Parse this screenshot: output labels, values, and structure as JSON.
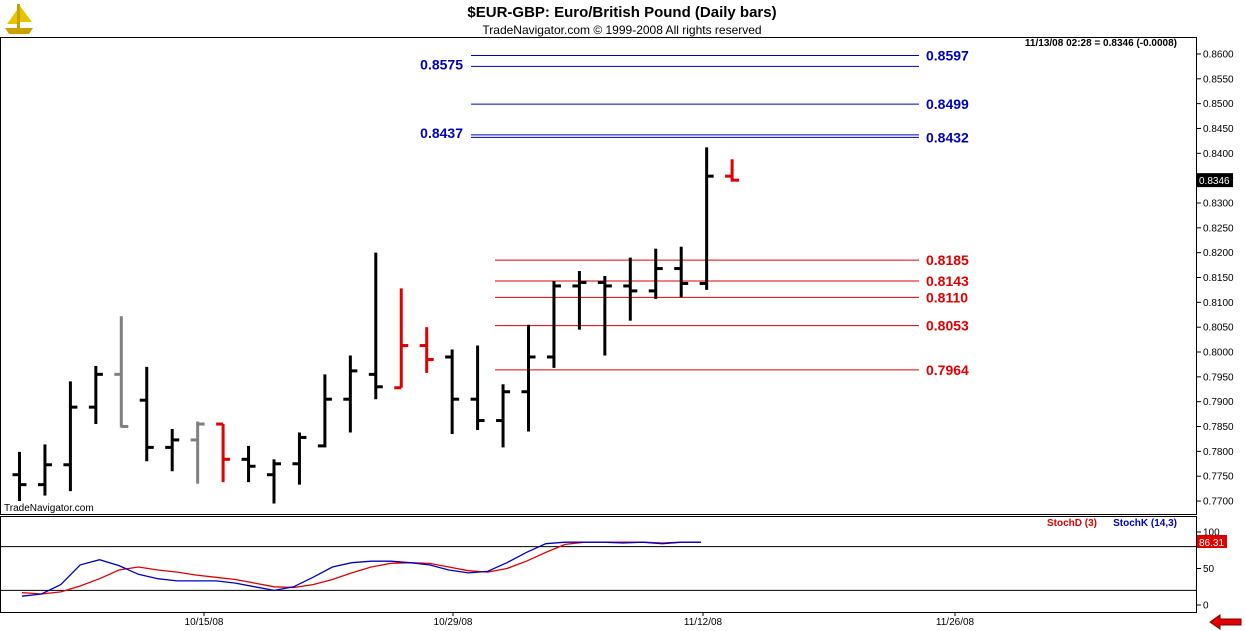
{
  "header": {
    "title": "$EUR-GBP:  Euro/British Pound  (Daily bars)",
    "subtitle": "TradeNavigator.com © 1999-2008 All rights reserved",
    "quote": "11/13/08 02:28 = 0.8346 (-0.0008)",
    "watermark": "TradeNavigator.com"
  },
  "colors": {
    "up": "#000000",
    "gray": "#808080",
    "red": "#e00000",
    "blue": "#0000c0",
    "logo": "#c8a000",
    "grid": "#000000"
  },
  "icons": {
    "logo": "gold-ship-logo-icon",
    "nav": "red-left-arrow-icon"
  },
  "chart_data": [
    {
      "type": "ohlc",
      "ylim": [
        0.769,
        0.8612
      ],
      "yticks": [
        "0.7700",
        "0.7750",
        "0.7800",
        "0.7850",
        "0.7900",
        "0.7950",
        "0.8000",
        "0.8050",
        "0.8100",
        "0.8150",
        "0.8200",
        "0.8250",
        "0.8300",
        "0.8350",
        "0.8400",
        "0.8450",
        "0.8500",
        "0.8550",
        "0.8600"
      ],
      "last_label": "0.8346",
      "xticks": [
        "10/15/08",
        "10/29/08",
        "11/12/08",
        "11/26/08"
      ],
      "bars": [
        {
          "date": "10/06",
          "o": 0.7753,
          "h": 0.7799,
          "l": 0.77,
          "c": 0.7733,
          "col": "black"
        },
        {
          "date": "10/07",
          "o": 0.7733,
          "h": 0.7814,
          "l": 0.7711,
          "c": 0.7773,
          "col": "black"
        },
        {
          "date": "10/08",
          "o": 0.7773,
          "h": 0.7941,
          "l": 0.772,
          "c": 0.7889,
          "col": "black"
        },
        {
          "date": "10/09",
          "o": 0.7889,
          "h": 0.7972,
          "l": 0.7855,
          "c": 0.7955,
          "col": "black"
        },
        {
          "date": "10/10",
          "o": 0.7955,
          "h": 0.8072,
          "l": 0.7848,
          "c": 0.785,
          "col": "gray"
        },
        {
          "date": "10/13",
          "o": 0.7903,
          "h": 0.797,
          "l": 0.778,
          "c": 0.7808,
          "col": "black"
        },
        {
          "date": "10/14",
          "o": 0.7808,
          "h": 0.7845,
          "l": 0.776,
          "c": 0.7823,
          "col": "black"
        },
        {
          "date": "10/15",
          "o": 0.7823,
          "h": 0.786,
          "l": 0.7735,
          "c": 0.7855,
          "col": "gray"
        },
        {
          "date": "10/16",
          "o": 0.7855,
          "h": 0.7855,
          "l": 0.7738,
          "c": 0.7784,
          "col": "red"
        },
        {
          "date": "10/17",
          "o": 0.7784,
          "h": 0.7811,
          "l": 0.7738,
          "c": 0.777,
          "col": "black"
        },
        {
          "date": "10/20",
          "o": 0.7753,
          "h": 0.7784,
          "l": 0.7695,
          "c": 0.7775,
          "col": "black"
        },
        {
          "date": "10/21",
          "o": 0.7775,
          "h": 0.7838,
          "l": 0.7733,
          "c": 0.7828,
          "col": "black"
        },
        {
          "date": "10/22",
          "o": 0.7811,
          "h": 0.7955,
          "l": 0.7808,
          "c": 0.7905,
          "col": "black"
        },
        {
          "date": "10/23",
          "o": 0.7905,
          "h": 0.7993,
          "l": 0.7838,
          "c": 0.7962,
          "col": "black"
        },
        {
          "date": "10/24",
          "o": 0.7955,
          "h": 0.82,
          "l": 0.7905,
          "c": 0.793,
          "col": "black"
        },
        {
          "date": "10/27",
          "o": 0.7928,
          "h": 0.8128,
          "l": 0.7928,
          "c": 0.8013,
          "col": "red"
        },
        {
          "date": "10/28",
          "o": 0.8013,
          "h": 0.805,
          "l": 0.7958,
          "c": 0.7985,
          "col": "red"
        },
        {
          "date": "10/29",
          "o": 0.799,
          "h": 0.8005,
          "l": 0.7835,
          "c": 0.7905,
          "col": "black"
        },
        {
          "date": "10/30",
          "o": 0.7905,
          "h": 0.8013,
          "l": 0.7843,
          "c": 0.7862,
          "col": "black"
        },
        {
          "date": "10/31",
          "o": 0.7862,
          "h": 0.7935,
          "l": 0.7808,
          "c": 0.792,
          "col": "black"
        },
        {
          "date": "11/03",
          "o": 0.792,
          "h": 0.8055,
          "l": 0.784,
          "c": 0.799,
          "col": "black"
        },
        {
          "date": "11/04",
          "o": 0.799,
          "h": 0.8143,
          "l": 0.7968,
          "c": 0.8133,
          "col": "black"
        },
        {
          "date": "11/05",
          "o": 0.8133,
          "h": 0.8163,
          "l": 0.8045,
          "c": 0.814,
          "col": "black"
        },
        {
          "date": "11/06",
          "o": 0.814,
          "h": 0.8153,
          "l": 0.7993,
          "c": 0.8133,
          "col": "black"
        },
        {
          "date": "11/07",
          "o": 0.8133,
          "h": 0.819,
          "l": 0.8063,
          "c": 0.8123,
          "col": "black"
        },
        {
          "date": "11/10",
          "o": 0.8123,
          "h": 0.8208,
          "l": 0.8107,
          "c": 0.8168,
          "col": "black"
        },
        {
          "date": "11/11",
          "o": 0.8168,
          "h": 0.8212,
          "l": 0.811,
          "c": 0.8138,
          "col": "black"
        },
        {
          "date": "11/12",
          "o": 0.8138,
          "h": 0.8412,
          "l": 0.8125,
          "c": 0.8354,
          "col": "black"
        },
        {
          "date": "11/13",
          "o": 0.8354,
          "h": 0.8388,
          "l": 0.8343,
          "c": 0.8346,
          "col": "red"
        }
      ],
      "levels": [
        {
          "value": "0.8597",
          "label": "0.8597",
          "color": "blue",
          "x0": "10/30",
          "x1": "11/20",
          "side": "right"
        },
        {
          "value": "0.8575",
          "label": "0.8575",
          "color": "blue",
          "x0": "10/30",
          "x1": "11/20",
          "side": "left"
        },
        {
          "value": "0.8499",
          "label": "0.8499",
          "color": "blue",
          "x0": "10/30",
          "x1": "11/20",
          "side": "right"
        },
        {
          "value": "0.8437",
          "label": "0.8437",
          "color": "blue",
          "x0": "10/30",
          "x1": "11/20",
          "side": "left"
        },
        {
          "value": "0.8432",
          "label": "0.8432",
          "color": "blue",
          "x0": "10/30",
          "x1": "11/20",
          "side": "right"
        },
        {
          "value": "0.8185",
          "label": "0.8185",
          "color": "red",
          "x0": "11/03",
          "x1": "11/20",
          "side": "right"
        },
        {
          "value": "0.8143",
          "label": "0.8143",
          "color": "red",
          "x0": "11/03",
          "x1": "11/20",
          "side": "right"
        },
        {
          "value": "0.8110",
          "label": "0.8110",
          "color": "red",
          "x0": "11/03",
          "x1": "11/20",
          "side": "right"
        },
        {
          "value": "0.8053",
          "label": "0.8053",
          "color": "red",
          "x0": "11/03",
          "x1": "11/20",
          "side": "right"
        },
        {
          "value": "0.7964",
          "label": "0.7964",
          "color": "red",
          "x0": "11/03",
          "x1": "11/20",
          "side": "right"
        }
      ]
    },
    {
      "type": "line",
      "ylim": [
        0,
        100
      ],
      "yticks": [
        "0",
        "50",
        "100"
      ],
      "reference_lines": [
        20,
        80
      ],
      "last_label": "86.31",
      "legend": [
        {
          "label": "StochD (3)",
          "color": "red"
        },
        {
          "label": "StochK (14,3)",
          "color": "blue"
        }
      ],
      "series": [
        {
          "name": "StochD (3)",
          "color": "red",
          "values": [
            17,
            15,
            18,
            26,
            36,
            48,
            52,
            48,
            45,
            41,
            38,
            35,
            30,
            25,
            24,
            28,
            35,
            44,
            52,
            57,
            58,
            57,
            52,
            47,
            45,
            50,
            60,
            72,
            83,
            86,
            86,
            86,
            86,
            85,
            86,
            86
          ]
        },
        {
          "name": "StochK (14,3)",
          "color": "blue",
          "values": [
            12,
            15,
            28,
            55,
            62,
            54,
            42,
            36,
            33,
            33,
            33,
            30,
            25,
            20,
            25,
            38,
            52,
            58,
            60,
            60,
            58,
            55,
            48,
            44,
            46,
            58,
            72,
            84,
            86,
            86,
            86,
            85,
            86,
            84,
            86,
            86
          ]
        }
      ]
    }
  ]
}
